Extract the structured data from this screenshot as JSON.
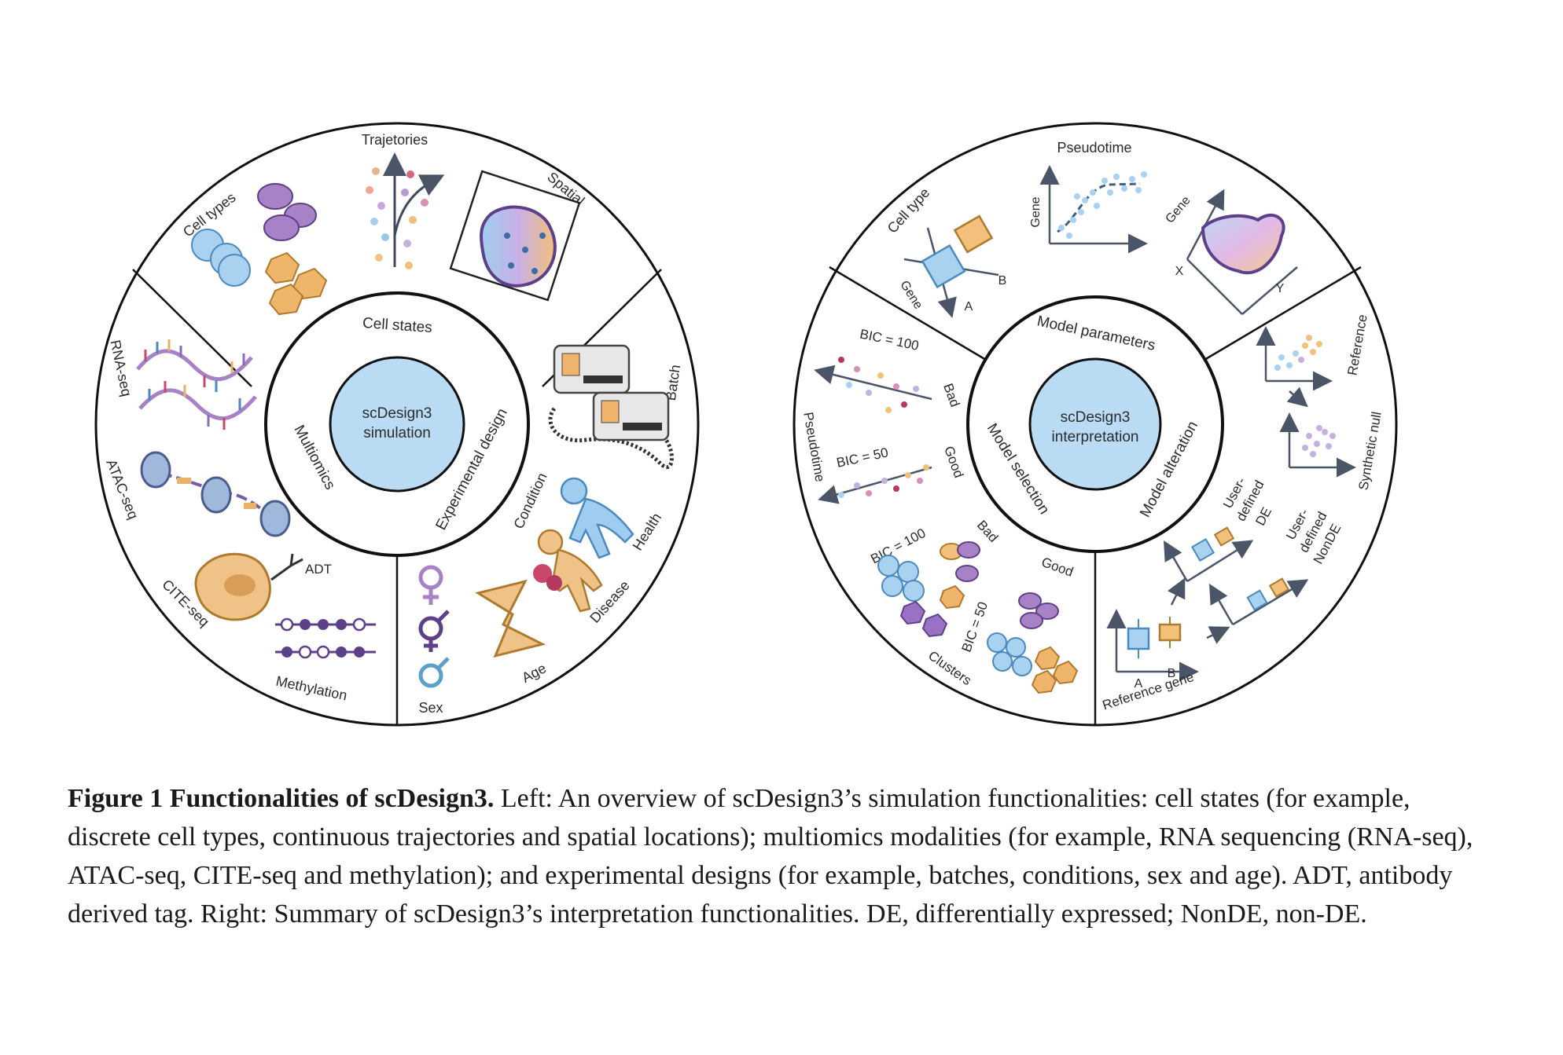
{
  "colors": {
    "center_fill": "#b9dcf4",
    "ring_stroke": "#111111",
    "blue": "#8ec3ea",
    "orange": "#e9b26c",
    "purple": "#8a6bb8",
    "pink": "#c9486a",
    "teal": "#5aa0c8"
  },
  "left_wheel": {
    "center": "scDesign3 simulation",
    "inner": {
      "top": "Cell states",
      "left": "Multiomics",
      "right": "Experimental design"
    },
    "outer": {
      "cell_types": "Cell types",
      "trajetories": "Trajetories",
      "spatial": "Spatial",
      "rna_seq": "RNA-seq",
      "atac_seq": "ATAC-seq",
      "cite_seq": "CITE-seq",
      "adt": "ADT",
      "methylation": "Methylation",
      "batch": "Batch",
      "condition": "Condition",
      "health": "Health",
      "disease": "Disease",
      "age": "Age",
      "sex": "Sex"
    },
    "icons": {
      "sex_symbols": [
        "female-sign",
        "intersex-sign",
        "male-sign"
      ],
      "age": "hourglass",
      "batch": "sequencers",
      "health": "person-figure"
    }
  },
  "right_wheel": {
    "center": "scDesign3 interpretation",
    "inner": {
      "top": "Model parameters",
      "left": "Model selection",
      "right": "Model alteration"
    },
    "outer": {
      "cell_type": "Cell type",
      "gene_axis": "Gene",
      "a": "A",
      "b": "B",
      "pseudotime_top": "Pseudotime",
      "gene_pt": "Gene",
      "gene_sp": "Gene",
      "x_axis": "X",
      "y_axis": "Y",
      "bic_100_top": "BIC = 100",
      "bad_top": "Bad",
      "pseudotime_left": "Pseudotime",
      "bic_50_mid": "BIC = 50",
      "good_mid": "Good",
      "bic_100_bottom": "BIC = 100",
      "bad_bottom": "Bad",
      "good_bottom": "Good",
      "bic_50_bottom": "BIC = 50",
      "clusters": "Clusters",
      "reference": "Reference",
      "synthetic_null": "Synthetic null",
      "user_de": [
        "User-",
        "defined",
        "DE"
      ],
      "user_nonde": [
        "User-",
        "defined",
        "NonDE"
      ],
      "a2": "A",
      "b2": "B",
      "reference_gene": "Reference gene"
    }
  },
  "caption": {
    "bold": "Figure 1 Functionalities of scDesign3.",
    "text": " Left: An overview of scDesign3’s simulation functionalities: cell states (for example, discrete cell types, continuous trajectories and spatial locations); multiomics modalities (for example, RNA sequencing (RNA-seq), ATAC-seq, CITE-seq and methylation); and experimental designs (for example, batches, conditions, sex and age). ADT, antibody derived tag. Right: Summary of scDesign3’s interpretation functionalities. DE, differentially expressed; NonDE, non-DE."
  }
}
